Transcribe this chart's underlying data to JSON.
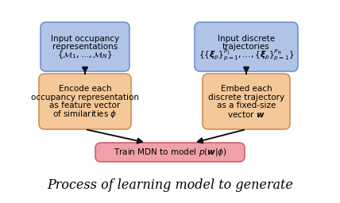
{
  "bg_color": "#ffffff",
  "box_blue_edge": "#7090d0",
  "box_blue_face": "#b0c4e8",
  "box_orange_edge": "#d09050",
  "box_orange_face": "#f5c899",
  "box_pink_edge": "#d06070",
  "box_pink_face": "#f0a0a8",
  "arrow_color": "#111111",
  "text_color": "#000000",
  "title_text": "Process of learning model to generate",
  "box1_line1": "Input occupancy",
  "box1_line2": "representations",
  "box1_line3": "$\\{\\mathcal{M}_1,\\ldots,\\mathcal{M}_N\\}$",
  "box2_line1": "Input discrete",
  "box2_line2": "trajectories",
  "box2_line3": "$\\{\\{\\boldsymbol{\\xi}_p\\}_{p=1}^{P_1},\\ldots,\\{\\boldsymbol{\\xi}_p\\}_{p=1}^{P_N}\\}$",
  "box3_line1": "Encode each",
  "box3_line2": "occupancy representation",
  "box3_line3": "as feature vector",
  "box3_line4": "of similarities $\\phi$",
  "box4_line1": "Embed each",
  "box4_line2": "discrete trajectory",
  "box4_line3": "as a fixed-size",
  "box4_line4": "vector $\\boldsymbol{w}$",
  "box5_text": "Train MDN to model $p(\\boldsymbol{w}|\\phi)$",
  "fontsize": 7.5,
  "fontsize_title": 11.5
}
